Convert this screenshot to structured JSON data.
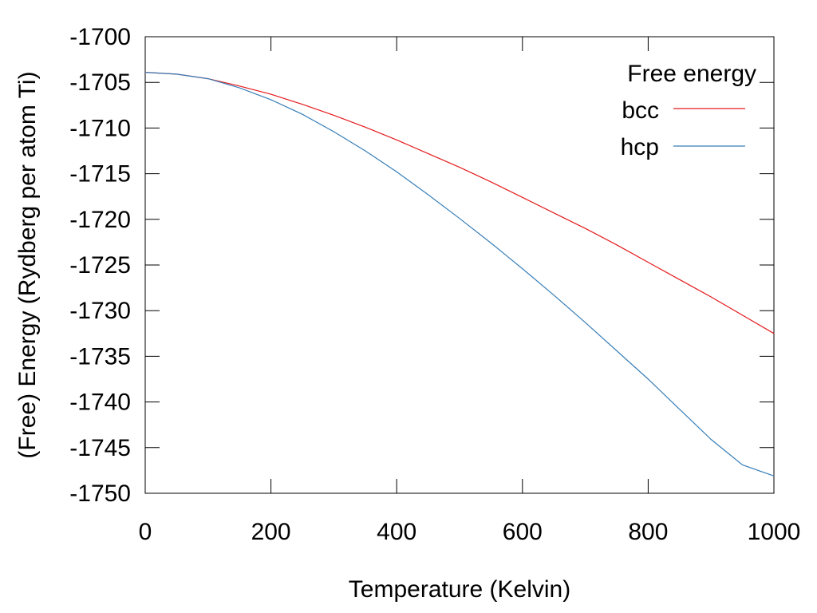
{
  "chart_data": {
    "type": "line",
    "title": "",
    "xlabel": "Temperature (Kelvin)",
    "ylabel": "(Free) Energy (Rydberg per atom Ti)",
    "xlim": [
      0,
      1000
    ],
    "ylim": [
      -1750,
      -1700
    ],
    "x_ticks": [
      0,
      200,
      400,
      600,
      800,
      1000
    ],
    "y_ticks": [
      -1700,
      -1705,
      -1710,
      -1715,
      -1720,
      -1725,
      -1730,
      -1735,
      -1740,
      -1745,
      -1750
    ],
    "grid": false,
    "legend": {
      "title": "Free energy",
      "position": "top-right"
    },
    "x": [
      0,
      50,
      100,
      150,
      200,
      250,
      300,
      350,
      400,
      450,
      500,
      550,
      600,
      650,
      700,
      750,
      800,
      850,
      900,
      950,
      1000
    ],
    "series": [
      {
        "name": "bcc",
        "color": "#e41a1c",
        "values": [
          -1703.9,
          -1704.1,
          -1704.6,
          -1705.4,
          -1706.3,
          -1707.4,
          -1708.6,
          -1709.9,
          -1711.3,
          -1712.8,
          -1714.3,
          -1715.9,
          -1717.6,
          -1719.3,
          -1721.0,
          -1722.8,
          -1724.7,
          -1726.6,
          -1728.5,
          -1730.5,
          -1732.5
        ]
      },
      {
        "name": "hcp",
        "color": "#377eb8",
        "values": [
          -1703.9,
          -1704.1,
          -1704.6,
          -1705.6,
          -1706.9,
          -1708.5,
          -1710.4,
          -1712.5,
          -1714.8,
          -1717.3,
          -1719.9,
          -1722.6,
          -1725.4,
          -1728.3,
          -1731.3,
          -1734.4,
          -1737.5,
          -1740.8,
          -1744.1,
          -1746.9,
          -1748.1
        ]
      }
    ]
  }
}
